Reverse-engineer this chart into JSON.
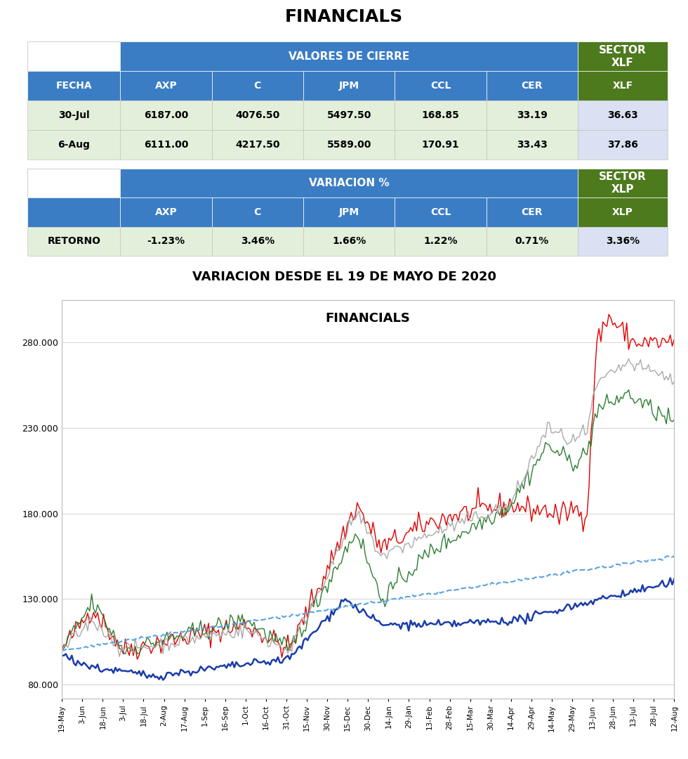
{
  "title": "FINANCIALS",
  "table1_header_merged": "VALORES DE CIERRE",
  "table1_header_right": "SECTOR\nXLF",
  "table2_header_merged": "VARIACION %",
  "table2_header_right": "SECTOR\nXLP",
  "row1_label": "30-Jul",
  "row1_values": [
    "6187.00",
    "4076.50",
    "5497.50",
    "168.85",
    "33.19",
    "36.63"
  ],
  "row2_label": "6-Aug",
  "row2_values": [
    "6111.00",
    "4217.50",
    "5589.00",
    "170.91",
    "33.43",
    "37.86"
  ],
  "retorno_label": "RETORNO",
  "retorno_values": [
    "-1.23%",
    "3.46%",
    "1.66%",
    "1.22%",
    "0.71%",
    "3.36%"
  ],
  "chart_title": "FINANCIALS",
  "var_title": "VARIACION DESDE EL 19 DE MAYO DE 2020",
  "ytick_labels": [
    "80.000",
    "130.000",
    "180.000",
    "230.000",
    "280.000"
  ],
  "ytick_vals": [
    80000,
    130000,
    180000,
    230000,
    280000
  ],
  "xtick_labels": [
    "19-May",
    "3-Jun",
    "18-Jun",
    "3-Jul",
    "18-Jul",
    "2-Aug",
    "17-Aug",
    "1-Sep",
    "16-Sep",
    "1-Oct",
    "16-Oct",
    "31-Oct",
    "15-Nov",
    "30-Nov",
    "15-Dec",
    "30-Dec",
    "14-Jan",
    "29-Jan",
    "13-Feb",
    "28-Feb",
    "15-Mar",
    "30-Mar",
    "14-Apr",
    "29-Apr",
    "14-May",
    "29-May",
    "13-Jun",
    "28-Jun",
    "13-Jul",
    "28-Jul",
    "12-Aug"
  ],
  "blue_header": "#3b7dc4",
  "green_header": "#4e7a1e",
  "light_green_row": "#e2efda",
  "light_gray_sector": "#d9e1f2",
  "white": "#ffffff",
  "col_data_headers": [
    "AXP",
    "C",
    "JPM",
    "CCL",
    "CER"
  ],
  "line_colors": {
    "AXP": "#e00000",
    "C": "#2e7d32",
    "JPM": "#aaaaaa",
    "CCL": "#1a3caa",
    "CER": "#5ba3e0"
  }
}
